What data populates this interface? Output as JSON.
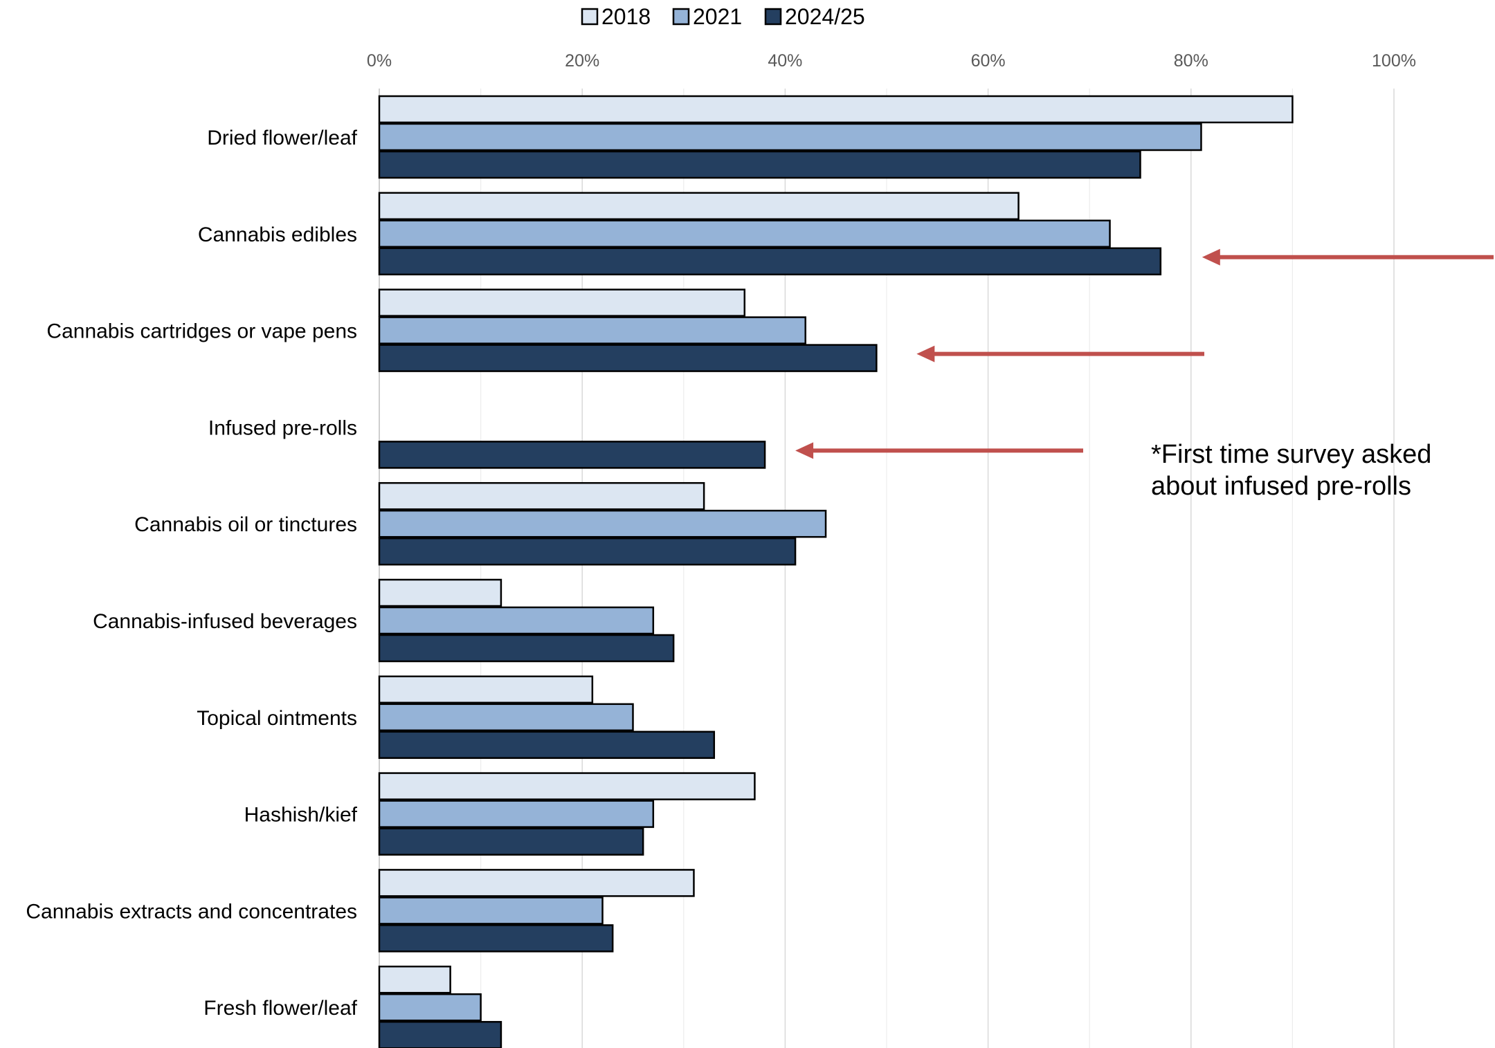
{
  "chart_data": {
    "type": "bar",
    "orientation": "horizontal",
    "categories": [
      "Dried flower/leaf",
      "Cannabis edibles",
      "Cannabis cartridges or vape pens",
      "Infused pre-rolls",
      "Cannabis oil or tinctures",
      "Cannabis-infused beverages",
      "Topical ointments",
      "Hashish/kief",
      "Cannabis extracts and concentrates",
      "Fresh flower/leaf"
    ],
    "series": [
      {
        "name": "2018",
        "color": "#dce6f2",
        "values": [
          90,
          63,
          36,
          null,
          32,
          12,
          21,
          37,
          31,
          7
        ]
      },
      {
        "name": "2021",
        "color": "#95b3d7",
        "values": [
          81,
          72,
          42,
          null,
          44,
          27,
          25,
          27,
          22,
          10
        ]
      },
      {
        "name": "2024/25",
        "color": "#243f60",
        "values": [
          75,
          77,
          49,
          38,
          41,
          29,
          33,
          26,
          23,
          12
        ]
      }
    ],
    "x_ticks": [
      "0%",
      "20%",
      "40%",
      "60%",
      "80%",
      "100%"
    ],
    "xlim": [
      0,
      100
    ],
    "x_axis_position": "top",
    "grid": true,
    "legend_position": "top",
    "annotation": {
      "text_lines": [
        "*First time survey asked",
        "about infused pre-rolls"
      ],
      "color": "#000000"
    },
    "arrows": {
      "color": "#c0504d",
      "pointing_to": [
        "Cannabis edibles",
        "Cannabis cartridges or vape pens",
        "Infused pre-rolls"
      ]
    }
  }
}
